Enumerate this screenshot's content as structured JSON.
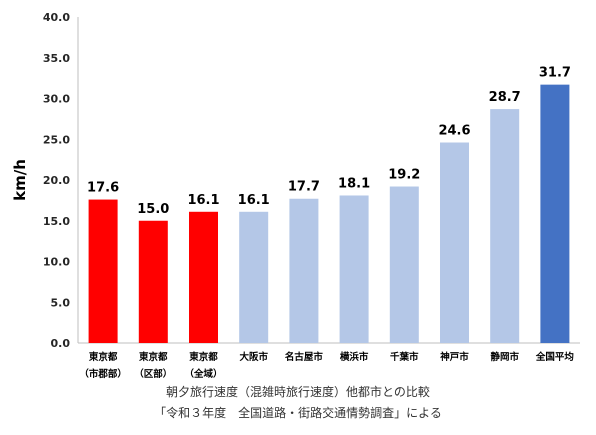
{
  "chart_data": {
    "type": "bar",
    "categories": [
      [
        "東京都",
        "（市郡部）"
      ],
      [
        "東京都",
        "（区部）"
      ],
      [
        "東京都",
        "（全域）"
      ],
      [
        "大阪市"
      ],
      [
        "名古屋市"
      ],
      [
        "横浜市"
      ],
      [
        "千葉市"
      ],
      [
        "神戸市"
      ],
      [
        "静岡市"
      ],
      [
        "全国平均"
      ]
    ],
    "values": [
      17.6,
      15.0,
      16.1,
      16.1,
      17.7,
      18.1,
      19.2,
      24.6,
      28.7,
      31.7
    ],
    "value_labels": [
      "17.6",
      "15.0",
      "16.1",
      "16.1",
      "17.7",
      "18.1",
      "19.2",
      "24.6",
      "28.7",
      "31.7"
    ],
    "bar_colors": [
      "#ff0000",
      "#ff0000",
      "#ff0000",
      "#b4c7e7",
      "#b4c7e7",
      "#b4c7e7",
      "#b4c7e7",
      "#b4c7e7",
      "#b4c7e7",
      "#4472c4"
    ],
    "ylabel": "km/h",
    "ylim": [
      0,
      40
    ],
    "yticks": [
      "0.0",
      "5.0",
      "10.0",
      "15.0",
      "20.0",
      "25.0",
      "30.0",
      "35.0",
      "40.0"
    ],
    "grid": false,
    "legend": "none"
  },
  "captions": {
    "line1": "朝夕旅行速度（混雑時旅行速度）他都市との比較",
    "line2": "「令和３年度　全国道路・街路交通情勢調査」による"
  }
}
